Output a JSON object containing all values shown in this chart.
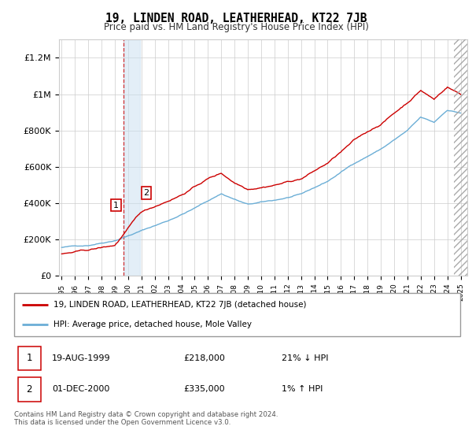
{
  "title": "19, LINDEN ROAD, LEATHERHEAD, KT22 7JB",
  "subtitle": "Price paid vs. HM Land Registry's House Price Index (HPI)",
  "ylabel_ticks": [
    "£0",
    "£200K",
    "£400K",
    "£600K",
    "£800K",
    "£1M",
    "£1.2M"
  ],
  "ytick_values": [
    0,
    200000,
    400000,
    600000,
    800000,
    1000000,
    1200000
  ],
  "ylim": [
    0,
    1300000
  ],
  "xlim_start": 1994.8,
  "xlim_end": 2025.5,
  "hpi_color": "#6baed6",
  "price_color": "#cc0000",
  "transaction1_x": 1999.63,
  "transaction1_price": 218000,
  "transaction2_x": 2000.92,
  "transaction2_price": 335000,
  "legend_line1": "19, LINDEN ROAD, LEATHERHEAD, KT22 7JB (detached house)",
  "legend_line2": "HPI: Average price, detached house, Mole Valley",
  "table_row1": [
    "1",
    "19-AUG-1999",
    "£218,000",
    "21% ↓ HPI"
  ],
  "table_row2": [
    "2",
    "01-DEC-2000",
    "£335,000",
    "1% ↑ HPI"
  ],
  "footer": "Contains HM Land Registry data © Crown copyright and database right 2024.\nThis data is licensed under the Open Government Licence v3.0.",
  "background_color": "#ffffff"
}
